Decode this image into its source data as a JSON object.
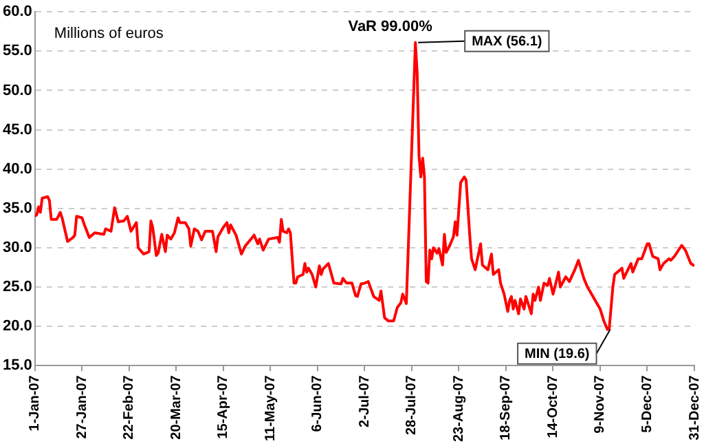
{
  "chart_data": {
    "type": "line",
    "xlim": [
      "2007-01-01",
      "2007-12-31"
    ],
    "ylim": [
      15,
      60
    ],
    "xticks": [
      {
        "value": "2007-01-01",
        "label": "1-Jan-07"
      },
      {
        "value": "2007-01-27",
        "label": "27-Jan-07"
      },
      {
        "value": "2007-02-22",
        "label": "22-Feb-07"
      },
      {
        "value": "2007-03-20",
        "label": "20-Mar-07"
      },
      {
        "value": "2007-04-15",
        "label": "15-Apr-07"
      },
      {
        "value": "2007-05-11",
        "label": "11-May-07"
      },
      {
        "value": "2007-06-06",
        "label": "6-Jun-07"
      },
      {
        "value": "2007-07-02",
        "label": "2-Jul-07"
      },
      {
        "value": "2007-07-28",
        "label": "28-Jul-07"
      },
      {
        "value": "2007-08-23",
        "label": "23-Aug-07"
      },
      {
        "value": "2007-09-18",
        "label": "18-Sep-07"
      },
      {
        "value": "2007-10-14",
        "label": "14-Oct-07"
      },
      {
        "value": "2007-11-09",
        "label": "9-Nov-07"
      },
      {
        "value": "2007-12-05",
        "label": "5-Dec-07"
      },
      {
        "value": "2007-12-31",
        "label": "31-Dec-07"
      }
    ],
    "yticks": [
      {
        "value": 15,
        "label": "15.0"
      },
      {
        "value": 20,
        "label": "20.0"
      },
      {
        "value": 25,
        "label": "25.0"
      },
      {
        "value": 30,
        "label": "30.0"
      },
      {
        "value": 35,
        "label": "35.0"
      },
      {
        "value": 40,
        "label": "40.0"
      },
      {
        "value": 45,
        "label": "45.0"
      },
      {
        "value": 50,
        "label": "50.0"
      },
      {
        "value": 55,
        "label": "55.0"
      },
      {
        "value": 60,
        "label": "60.0"
      }
    ],
    "grid": "y",
    "legend": false,
    "annotations": [
      "Millions of euros",
      "VaR 99.00%",
      {
        "text": "MAX (56.1)",
        "x": "2007-07-30",
        "y": 56.1
      },
      {
        "text": "MIN (19.6)",
        "x": "2007-11-13",
        "y": 19.6
      }
    ],
    "series": [
      {
        "color": "#ff0000",
        "x": [
          "2007-01-01",
          "2007-01-02",
          "2007-01-03",
          "2007-01-04",
          "2007-01-05",
          "2007-01-08",
          "2007-01-09",
          "2007-01-10",
          "2007-01-13",
          "2007-01-15",
          "2007-01-16",
          "2007-01-19",
          "2007-01-22",
          "2007-01-23",
          "2007-01-24",
          "2007-01-27",
          "2007-01-28",
          "2007-01-30",
          "2007-01-31",
          "2007-02-03",
          "2007-02-08",
          "2007-02-09",
          "2007-02-12",
          "2007-02-14",
          "2007-02-16",
          "2007-02-19",
          "2007-02-21",
          "2007-02-23",
          "2007-02-26",
          "2007-02-27",
          "2007-03-02",
          "2007-03-05",
          "2007-03-06",
          "2007-03-07",
          "2007-03-09",
          "2007-03-10",
          "2007-03-12",
          "2007-03-14",
          "2007-03-15",
          "2007-03-17",
          "2007-03-19",
          "2007-03-21",
          "2007-03-22",
          "2007-03-25",
          "2007-03-27",
          "2007-03-28",
          "2007-03-30",
          "2007-04-01",
          "2007-04-03",
          "2007-04-05",
          "2007-04-09",
          "2007-04-11",
          "2007-04-12",
          "2007-04-15",
          "2007-04-17",
          "2007-04-18",
          "2007-04-19",
          "2007-04-22",
          "2007-04-25",
          "2007-04-27",
          "2007-05-01",
          "2007-05-02",
          "2007-05-04",
          "2007-05-05",
          "2007-05-07",
          "2007-05-10",
          "2007-05-15",
          "2007-05-16",
          "2007-05-17",
          "2007-05-18",
          "2007-05-20",
          "2007-05-21",
          "2007-05-22",
          "2007-05-24",
          "2007-05-25",
          "2007-05-26",
          "2007-05-29",
          "2007-05-30",
          "2007-05-31",
          "2007-06-01",
          "2007-06-03",
          "2007-06-05",
          "2007-06-07",
          "2007-06-08",
          "2007-06-09",
          "2007-06-12",
          "2007-06-15",
          "2007-06-19",
          "2007-06-20",
          "2007-06-22",
          "2007-06-25",
          "2007-06-27",
          "2007-06-28",
          "2007-06-30",
          "2007-07-02",
          "2007-07-04",
          "2007-07-07",
          "2007-07-10",
          "2007-07-11",
          "2007-07-13",
          "2007-07-15",
          "2007-07-18",
          "2007-07-20",
          "2007-07-22",
          "2007-07-23",
          "2007-07-25",
          "2007-07-26",
          "2007-07-28",
          "2007-07-30",
          "2007-07-31",
          "2007-08-01",
          "2007-08-02",
          "2007-08-03",
          "2007-08-04",
          "2007-08-05",
          "2007-08-06",
          "2007-08-07",
          "2007-08-08",
          "2007-08-09",
          "2007-08-11",
          "2007-08-12",
          "2007-08-14",
          "2007-08-15",
          "2007-08-16",
          "2007-08-18",
          "2007-08-20",
          "2007-08-21",
          "2007-08-22",
          "2007-08-24",
          "2007-08-26",
          "2007-08-27",
          "2007-08-29",
          "2007-08-30",
          "2007-09-01",
          "2007-09-04",
          "2007-09-05",
          "2007-09-08",
          "2007-09-10",
          "2007-09-11",
          "2007-09-14",
          "2007-09-15",
          "2007-09-17",
          "2007-09-19",
          "2007-09-20",
          "2007-09-21",
          "2007-09-22",
          "2007-09-23",
          "2007-09-25",
          "2007-09-26",
          "2007-09-28",
          "2007-09-29",
          "2007-10-02",
          "2007-10-03",
          "2007-10-04",
          "2007-10-06",
          "2007-10-07",
          "2007-10-09",
          "2007-10-11",
          "2007-10-12",
          "2007-10-14",
          "2007-10-15",
          "2007-10-17",
          "2007-10-18",
          "2007-10-21",
          "2007-10-23",
          "2007-10-26",
          "2007-10-28",
          "2007-10-31",
          "2007-11-02",
          "2007-11-05",
          "2007-11-09",
          "2007-11-11",
          "2007-11-13",
          "2007-11-14",
          "2007-11-16",
          "2007-11-17",
          "2007-11-21",
          "2007-11-22",
          "2007-11-26",
          "2007-11-27",
          "2007-11-30",
          "2007-12-02",
          "2007-12-05",
          "2007-12-06",
          "2007-12-08",
          "2007-12-11",
          "2007-12-12",
          "2007-12-14",
          "2007-12-17",
          "2007-12-18",
          "2007-12-20",
          "2007-12-24",
          "2007-12-26",
          "2007-12-29",
          "2007-12-31"
        ],
        "values": [
          34.0,
          34.2,
          35.2,
          34.5,
          36.3,
          36.5,
          36.0,
          33.6,
          33.6,
          34.5,
          33.8,
          30.8,
          31.3,
          31.6,
          34.0,
          33.8,
          33.1,
          31.9,
          31.3,
          31.9,
          31.7,
          32.4,
          32.1,
          35.1,
          33.3,
          33.4,
          34.0,
          32.1,
          33.2,
          30.0,
          29.2,
          29.5,
          33.4,
          32.6,
          29.0,
          29.3,
          31.7,
          29.5,
          31.6,
          31.1,
          31.9,
          33.8,
          33.2,
          33.2,
          32.4,
          30.2,
          32.4,
          32.1,
          31.0,
          32.1,
          32.1,
          29.5,
          31.4,
          32.6,
          33.2,
          31.9,
          32.9,
          31.6,
          29.2,
          30.2,
          31.3,
          31.6,
          30.5,
          31.1,
          29.7,
          31.1,
          31.3,
          30.7,
          33.6,
          32.1,
          31.9,
          32.4,
          31.9,
          25.5,
          25.5,
          26.3,
          26.6,
          28.0,
          26.9,
          27.4,
          26.6,
          25.0,
          27.7,
          26.6,
          27.3,
          28.0,
          25.5,
          25.4,
          26.1,
          25.5,
          25.5,
          23.9,
          23.8,
          25.4,
          25.5,
          25.7,
          23.8,
          23.3,
          24.5,
          21.1,
          20.7,
          20.7,
          22.4,
          23.0,
          24.1,
          22.9,
          29.4,
          42.7,
          56.1,
          52.2,
          41.7,
          39.0,
          41.4,
          39.0,
          25.7,
          25.5,
          29.7,
          28.6,
          30.0,
          29.3,
          29.9,
          27.8,
          31.7,
          29.4,
          30.3,
          31.4,
          33.3,
          31.6,
          38.3,
          39.0,
          38.6,
          31.6,
          28.6,
          27.2,
          30.5,
          27.8,
          27.2,
          29.2,
          26.6,
          27.2,
          25.5,
          24.1,
          21.9,
          23.3,
          23.8,
          22.2,
          23.3,
          21.6,
          23.5,
          22.2,
          23.8,
          21.6,
          24.1,
          23.3,
          25.0,
          23.3,
          25.5,
          25.2,
          26.1,
          24.1,
          25.0,
          26.9,
          25.0,
          26.3,
          25.7,
          27.2,
          28.4,
          26.1,
          25.0,
          23.8,
          22.2,
          20.7,
          19.6,
          19.7,
          25.0,
          26.6,
          27.4,
          26.1,
          28.0,
          26.9,
          28.6,
          28.6,
          30.5,
          30.5,
          28.9,
          28.6,
          27.2,
          28.0,
          28.6,
          28.4,
          28.9,
          30.3,
          29.7,
          28.0,
          27.7
        ]
      }
    ]
  }
}
